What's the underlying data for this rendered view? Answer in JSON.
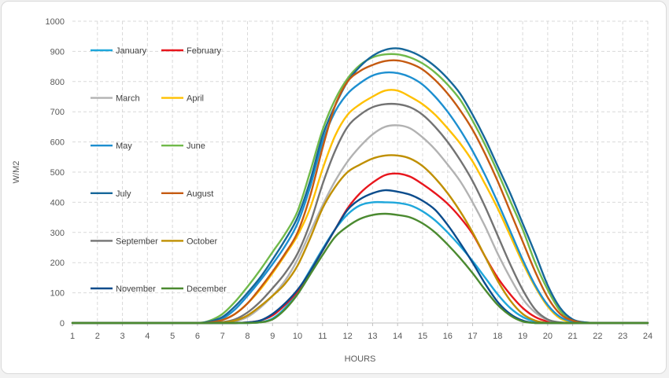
{
  "chart_data": {
    "type": "line",
    "title": "",
    "xlabel": "HOURS",
    "ylabel": "W/M2",
    "xlim": [
      1,
      24
    ],
    "ylim": [
      0,
      1000
    ],
    "x_ticks": [
      1,
      2,
      3,
      4,
      5,
      6,
      7,
      8,
      9,
      10,
      11,
      12,
      13,
      14,
      15,
      16,
      17,
      18,
      19,
      20,
      21,
      22,
      23,
      24
    ],
    "y_ticks": [
      0,
      100,
      200,
      300,
      400,
      500,
      600,
      700,
      800,
      900,
      1000
    ],
    "grid": true,
    "legend_position": "top-left",
    "x": [
      1,
      2,
      3,
      4,
      5,
      6,
      6.5,
      7,
      7.5,
      8,
      8.5,
      9,
      9.5,
      10,
      10.5,
      11,
      11.5,
      12,
      12.5,
      13,
      13.5,
      14,
      14.5,
      15,
      15.5,
      16,
      16.5,
      17,
      17.5,
      18,
      18.5,
      19,
      19.5,
      20,
      20.5,
      21,
      21.5,
      22,
      23,
      24
    ],
    "series": [
      {
        "name": "January",
        "color": "#1fa7db",
        "values": [
          0,
          0,
          0,
          0,
          0,
          0,
          0,
          0,
          0,
          0,
          2,
          15,
          50,
          105,
          175,
          245,
          310,
          360,
          390,
          400,
          400,
          398,
          390,
          370,
          340,
          300,
          255,
          205,
          150,
          95,
          50,
          20,
          5,
          0,
          0,
          0,
          0,
          0,
          0,
          0
        ]
      },
      {
        "name": "February",
        "color": "#e8161d",
        "values": [
          0,
          0,
          0,
          0,
          0,
          0,
          0,
          0,
          0,
          2,
          8,
          25,
          60,
          105,
          170,
          240,
          310,
          380,
          430,
          465,
          490,
          495,
          485,
          460,
          430,
          395,
          350,
          295,
          220,
          150,
          95,
          50,
          20,
          5,
          0,
          0,
          0,
          0,
          0,
          0
        ]
      },
      {
        "name": "March",
        "color": "#b2b2b2",
        "values": [
          0,
          0,
          0,
          0,
          0,
          0,
          0,
          0,
          5,
          20,
          50,
          90,
          140,
          210,
          300,
          390,
          470,
          535,
          585,
          625,
          650,
          655,
          645,
          615,
          575,
          525,
          470,
          400,
          320,
          230,
          150,
          80,
          35,
          10,
          2,
          0,
          0,
          0,
          0,
          0
        ]
      },
      {
        "name": "April",
        "color": "#ffc000",
        "values": [
          0,
          0,
          0,
          0,
          0,
          0,
          2,
          10,
          30,
          65,
          110,
          165,
          225,
          290,
          380,
          510,
          620,
          690,
          725,
          750,
          770,
          770,
          750,
          725,
          690,
          645,
          595,
          535,
          460,
          380,
          290,
          200,
          120,
          55,
          15,
          3,
          0,
          0,
          0,
          0
        ]
      },
      {
        "name": "May",
        "color": "#1d8fd0",
        "values": [
          0,
          0,
          0,
          0,
          0,
          0,
          3,
          15,
          45,
          90,
          140,
          195,
          255,
          330,
          450,
          600,
          700,
          760,
          795,
          820,
          830,
          828,
          815,
          790,
          750,
          700,
          640,
          570,
          490,
          400,
          305,
          210,
          125,
          60,
          20,
          5,
          0,
          0,
          0,
          0
        ]
      },
      {
        "name": "June",
        "color": "#70b94a",
        "values": [
          0,
          0,
          0,
          0,
          0,
          0,
          8,
          30,
          70,
          120,
          175,
          235,
          295,
          370,
          500,
          640,
          740,
          810,
          855,
          880,
          890,
          890,
          880,
          860,
          830,
          790,
          740,
          670,
          590,
          500,
          405,
          310,
          200,
          110,
          40,
          10,
          2,
          0,
          0,
          0
        ]
      },
      {
        "name": "July",
        "color": "#16679a",
        "values": [
          0,
          0,
          0,
          0,
          0,
          0,
          5,
          20,
          55,
          100,
          150,
          210,
          275,
          350,
          470,
          620,
          720,
          800,
          850,
          885,
          905,
          910,
          900,
          880,
          850,
          810,
          760,
          690,
          610,
          520,
          430,
          330,
          230,
          125,
          50,
          12,
          2,
          0,
          0,
          0
        ]
      },
      {
        "name": "August",
        "color": "#c55a11",
        "values": [
          0,
          0,
          0,
          0,
          0,
          0,
          2,
          10,
          30,
          65,
          115,
          170,
          230,
          300,
          420,
          580,
          720,
          800,
          835,
          855,
          868,
          870,
          860,
          840,
          805,
          760,
          705,
          640,
          560,
          470,
          370,
          270,
          170,
          85,
          30,
          8,
          0,
          0,
          0,
          0
        ]
      },
      {
        "name": "September",
        "color": "#737373",
        "values": [
          0,
          0,
          0,
          0,
          0,
          0,
          0,
          3,
          12,
          35,
          70,
          115,
          165,
          230,
          330,
          460,
          570,
          650,
          690,
          715,
          725,
          725,
          715,
          690,
          650,
          600,
          540,
          470,
          385,
          290,
          195,
          110,
          45,
          12,
          2,
          0,
          0,
          0,
          0,
          0
        ]
      },
      {
        "name": "October",
        "color": "#bf8f00",
        "values": [
          0,
          0,
          0,
          0,
          0,
          0,
          0,
          2,
          8,
          25,
          55,
          90,
          130,
          190,
          280,
          380,
          450,
          500,
          525,
          545,
          555,
          555,
          545,
          520,
          480,
          430,
          370,
          300,
          220,
          140,
          75,
          30,
          8,
          0,
          0,
          0,
          0,
          0,
          0,
          0
        ]
      },
      {
        "name": "November",
        "color": "#0b4c8c",
        "values": [
          0,
          0,
          0,
          0,
          0,
          0,
          0,
          0,
          0,
          2,
          8,
          30,
          65,
          110,
          170,
          240,
          310,
          375,
          410,
          430,
          440,
          435,
          425,
          405,
          375,
          325,
          265,
          200,
          130,
          70,
          30,
          8,
          0,
          0,
          0,
          0,
          0,
          0,
          0,
          0
        ]
      },
      {
        "name": "December",
        "color": "#4b8a30",
        "values": [
          0,
          0,
          0,
          0,
          0,
          0,
          0,
          0,
          0,
          0,
          2,
          12,
          45,
          95,
          160,
          225,
          285,
          320,
          345,
          358,
          362,
          358,
          350,
          330,
          300,
          260,
          215,
          165,
          110,
          60,
          25,
          5,
          0,
          0,
          0,
          0,
          0,
          0,
          0,
          0
        ]
      }
    ]
  }
}
